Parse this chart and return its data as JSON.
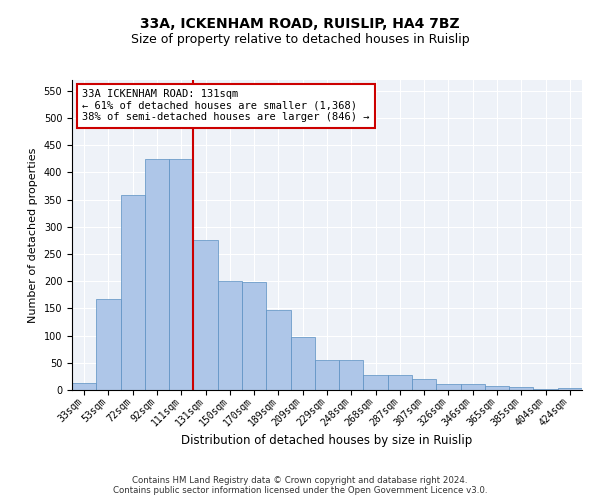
{
  "title": "33A, ICKENHAM ROAD, RUISLIP, HA4 7BZ",
  "subtitle": "Size of property relative to detached houses in Ruislip",
  "xlabel": "Distribution of detached houses by size in Ruislip",
  "ylabel": "Number of detached properties",
  "categories": [
    "33sqm",
    "53sqm",
    "72sqm",
    "92sqm",
    "111sqm",
    "131sqm",
    "150sqm",
    "170sqm",
    "189sqm",
    "209sqm",
    "229sqm",
    "248sqm",
    "268sqm",
    "287sqm",
    "307sqm",
    "326sqm",
    "346sqm",
    "365sqm",
    "385sqm",
    "404sqm",
    "424sqm"
  ],
  "values": [
    13,
    168,
    358,
    425,
    425,
    275,
    200,
    198,
    148,
    97,
    55,
    55,
    27,
    27,
    20,
    11,
    11,
    7,
    5,
    1,
    3
  ],
  "bar_color": "#aec6e8",
  "bar_edge_color": "#5a8fc2",
  "vline_index": 5,
  "vline_color": "#cc0000",
  "annotation_text": "33A ICKENHAM ROAD: 131sqm\n← 61% of detached houses are smaller (1,368)\n38% of semi-detached houses are larger (846) →",
  "annotation_box_color": "#ffffff",
  "annotation_box_edge_color": "#cc0000",
  "ylim": [
    0,
    570
  ],
  "yticks": [
    0,
    50,
    100,
    150,
    200,
    250,
    300,
    350,
    400,
    450,
    500,
    550
  ],
  "footer": "Contains HM Land Registry data © Crown copyright and database right 2024.\nContains public sector information licensed under the Open Government Licence v3.0.",
  "bg_color": "#eef2f8",
  "fig_bg_color": "#ffffff",
  "title_fontsize": 10,
  "subtitle_fontsize": 9,
  "tick_fontsize": 7,
  "ylabel_fontsize": 8,
  "xlabel_fontsize": 8.5,
  "footer_fontsize": 6.2
}
